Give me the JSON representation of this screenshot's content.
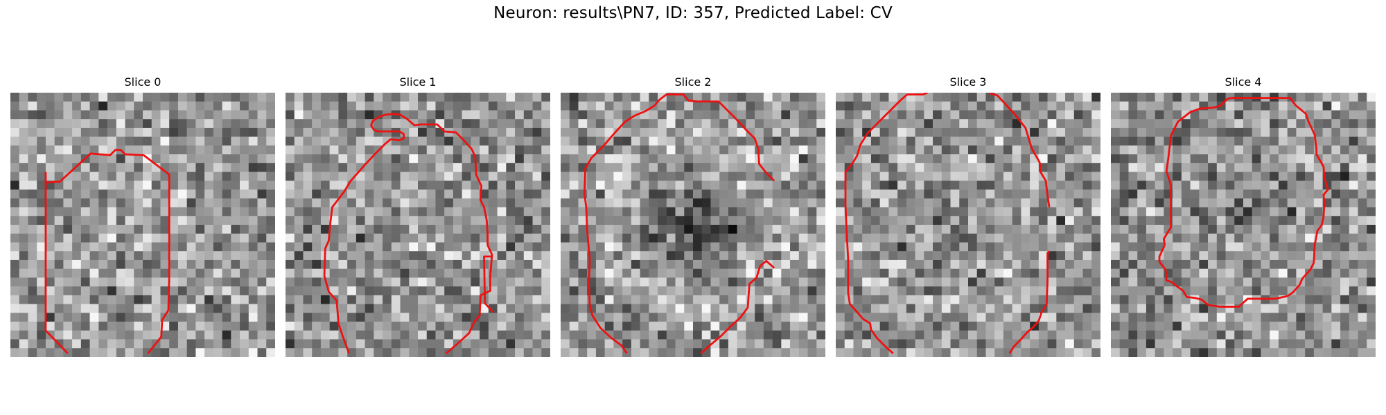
{
  "figure": {
    "title": "Neuron: results\\PN7, ID: 357, Predicted Label: CV"
  },
  "style": {
    "contour_color": "#ee1111",
    "background": "#ffffff"
  },
  "slices": [
    {
      "title": "Slice 0",
      "seed": 11,
      "feature": "faint bright disk",
      "contour": [
        [
          4,
          26
        ],
        [
          4,
          9
        ],
        [
          8,
          7
        ],
        [
          11,
          6.8
        ],
        [
          13,
          6.4
        ],
        [
          14.1,
          6.4
        ],
        [
          14.8,
          6.8
        ],
        [
          16.9,
          7
        ],
        [
          19.7,
          9
        ],
        [
          19.9,
          16
        ],
        [
          19.9,
          21
        ],
        [
          19.6,
          24
        ],
        [
          17,
          25.2
        ],
        [
          15,
          28
        ],
        [
          15.4,
          29.5
        ],
        [
          7.6,
          29.6
        ],
        [
          7.5,
          28
        ],
        [
          6.5,
          27
        ],
        [
          4,
          26
        ]
      ],
      "contour_open": [
        [
          [
            4,
            9
          ],
          [
            4,
            27
          ],
          [
            6.5,
            29.6
          ]
        ],
        [
          [
            15.6,
            29.6
          ],
          [
            17.1,
            27.7
          ],
          [
            17.2,
            25.8
          ],
          [
            17.9,
            24.7
          ],
          [
            18,
            21
          ],
          [
            18,
            9.3
          ],
          [
            15.1,
            7.1
          ],
          [
            13,
            7
          ],
          [
            12.5,
            6.5
          ],
          [
            11.9,
            6.5
          ],
          [
            11.3,
            7.1
          ],
          [
            9.1,
            6.9
          ],
          [
            5.6,
            10.1
          ],
          [
            4,
            10.2
          ]
        ]
      ]
    },
    {
      "title": "Slice 1",
      "seed": 23,
      "feature": "mixed",
      "contour_open": [
        [
          [
            7.2,
            29.6
          ],
          [
            6.5,
            27.7
          ],
          [
            6,
            26.2
          ],
          [
            5.8,
            23.6
          ],
          [
            4.9,
            22.6
          ],
          [
            4.4,
            20.8
          ],
          [
            4.5,
            17.7
          ],
          [
            4.9,
            16.8
          ],
          [
            5.1,
            14.6
          ],
          [
            5.3,
            13
          ],
          [
            6.6,
            11.3
          ],
          [
            7.4,
            10
          ],
          [
            8.9,
            8.3
          ],
          [
            10.2,
            6.9
          ],
          [
            11.3,
            5.8
          ],
          [
            11.9,
            5.3
          ],
          [
            12.9,
            5.4
          ],
          [
            13.4,
            5.2
          ],
          [
            13.4,
            4.7
          ],
          [
            12.9,
            4.4
          ],
          [
            10.4,
            4.4
          ],
          [
            10,
            4.2
          ],
          [
            9.7,
            3.7
          ],
          [
            9.9,
            3.2
          ],
          [
            10.5,
            2.8
          ],
          [
            11.3,
            2.5
          ],
          [
            12.2,
            2.4
          ],
          [
            13,
            2.5
          ],
          [
            13.8,
            3
          ],
          [
            14.6,
            3.7
          ],
          [
            15.3,
            3.6
          ],
          [
            16.3,
            3.6
          ],
          [
            17.2,
            3.6
          ],
          [
            18,
            4.4
          ],
          [
            19.3,
            4.5
          ],
          [
            20.1,
            5.3
          ],
          [
            21.1,
            6.4
          ],
          [
            21.5,
            7.3
          ],
          [
            21.6,
            9.3
          ],
          [
            22.2,
            10.6
          ],
          [
            22.1,
            12.2
          ],
          [
            22.5,
            13
          ],
          [
            22.8,
            14.5
          ],
          [
            22.9,
            16
          ],
          [
            22.9,
            17.3
          ],
          [
            23.4,
            18.4
          ],
          [
            23.2,
            20.8
          ],
          [
            23.2,
            22.5
          ],
          [
            22.1,
            23
          ],
          [
            22,
            25.3
          ],
          [
            21.4,
            26
          ],
          [
            20.8,
            27.3
          ],
          [
            19.5,
            28.5
          ],
          [
            18.2,
            29.6
          ]
        ],
        [
          [
            23.5,
            18.6
          ],
          [
            22.5,
            18.6
          ],
          [
            22.6,
            23.9
          ],
          [
            23.5,
            24.9
          ]
        ]
      ]
    },
    {
      "title": "Slice 2",
      "seed": 37,
      "feature": "dark center",
      "contour_open": [
        [
          [
            7.5,
            29.6
          ],
          [
            6.9,
            28.7
          ],
          [
            5.8,
            27.9
          ],
          [
            4.5,
            26.7
          ],
          [
            3.6,
            25.3
          ],
          [
            3.3,
            24.1
          ],
          [
            3.2,
            21.7
          ],
          [
            3.3,
            19
          ],
          [
            3.1,
            16.7
          ],
          [
            3,
            15.4
          ],
          [
            2.9,
            13
          ],
          [
            2.7,
            11.5
          ],
          [
            2.8,
            8.6
          ],
          [
            3.5,
            7.4
          ],
          [
            4.8,
            6.1
          ],
          [
            6.1,
            4.6
          ],
          [
            7.3,
            3.3
          ],
          [
            8.4,
            2.6
          ],
          [
            9.6,
            2.1
          ],
          [
            10.6,
            1.5
          ],
          [
            11.2,
            0.8
          ],
          [
            12,
            0.2
          ],
          [
            13.9,
            0.2
          ],
          [
            14.5,
            0.9
          ],
          [
            15.5,
            1
          ],
          [
            16.8,
            1
          ],
          [
            17.9,
            1
          ],
          [
            18.7,
            1.8
          ],
          [
            19.8,
            2.9
          ],
          [
            20.9,
            4.1
          ],
          [
            22,
            5.2
          ],
          [
            22.4,
            6.4
          ],
          [
            22.5,
            8.1
          ],
          [
            23.3,
            9.1
          ],
          [
            24.2,
            10
          ]
        ],
        [
          [
            24.2,
            19.9
          ],
          [
            23.3,
            19.1
          ],
          [
            22.6,
            19.7
          ],
          [
            22.2,
            21
          ],
          [
            21.4,
            21.7
          ],
          [
            21.2,
            24.4
          ],
          [
            20.4,
            25.5
          ],
          [
            19.2,
            26.6
          ],
          [
            18.1,
            27.7
          ],
          [
            16.9,
            28.7
          ],
          [
            15.9,
            29.6
          ]
        ]
      ]
    },
    {
      "title": "Slice 3",
      "seed": 51,
      "feature": "mixed",
      "contour_open": [
        [
          [
            6.5,
            29.6
          ],
          [
            5.6,
            28.8
          ],
          [
            4.7,
            27.9
          ],
          [
            4,
            26.9
          ],
          [
            3.9,
            26.2
          ],
          [
            3.1,
            25.7
          ],
          [
            2.5,
            25
          ],
          [
            1.6,
            24
          ],
          [
            1.4,
            22.7
          ],
          [
            1.4,
            21.2
          ],
          [
            1.4,
            18.9
          ],
          [
            1.2,
            15.1
          ],
          [
            1.1,
            12.7
          ],
          [
            1.1,
            10.4
          ],
          [
            1.1,
            9
          ],
          [
            1.9,
            8
          ],
          [
            2.4,
            7.2
          ],
          [
            2.8,
            5.9
          ],
          [
            3.6,
            4.6
          ],
          [
            4.7,
            3.5
          ],
          [
            6,
            2.2
          ],
          [
            7.3,
            0.9
          ],
          [
            8.1,
            0.2
          ],
          [
            9.9,
            0.2
          ],
          [
            10.4,
            0
          ]
        ],
        [
          [
            17.5,
            0.1
          ],
          [
            18.3,
            0.3
          ],
          [
            19.5,
            1.6
          ],
          [
            20.4,
            2.6
          ],
          [
            21.5,
            4
          ],
          [
            21.9,
            5.3
          ],
          [
            22.2,
            6.3
          ],
          [
            22.7,
            7.2
          ],
          [
            23.1,
            7.9
          ],
          [
            23.2,
            9
          ],
          [
            23.8,
            10
          ],
          [
            24,
            11.7
          ],
          [
            24.2,
            13
          ]
        ],
        [
          [
            24.2,
            18
          ],
          [
            24,
            18.2
          ],
          [
            24,
            21.3
          ],
          [
            23.9,
            24
          ],
          [
            23.3,
            25
          ],
          [
            23,
            25.9
          ],
          [
            22.4,
            26.6
          ],
          [
            21.7,
            27.2
          ],
          [
            20.9,
            28.1
          ],
          [
            20.2,
            28.8
          ],
          [
            19.7,
            29.6
          ]
        ]
      ]
    },
    {
      "title": "Slice 4",
      "seed": 67,
      "feature": "speckled",
      "contour_open": [
        [
          [
            6.1,
            17.3
          ],
          [
            6,
            16.6
          ],
          [
            6.6,
            15.6
          ],
          [
            6.8,
            15.3
          ],
          [
            6.8,
            10.5
          ],
          [
            6.3,
            8.9
          ],
          [
            6.5,
            7.5
          ],
          [
            6.8,
            4.9
          ],
          [
            7.6,
            3.3
          ],
          [
            9,
            2.2
          ],
          [
            10.1,
            1.8
          ],
          [
            11.6,
            1.7
          ],
          [
            12.4,
            1.5
          ],
          [
            13.2,
            0.7
          ],
          [
            13.7,
            0.6
          ],
          [
            15,
            0.6
          ],
          [
            16.2,
            0.6
          ],
          [
            17.8,
            0.6
          ],
          [
            18.9,
            0.6
          ],
          [
            20.3,
            0.6
          ],
          [
            20.9,
            1.4
          ],
          [
            22.1,
            2.4
          ],
          [
            22.4,
            3.3
          ],
          [
            22.7,
            3.9
          ],
          [
            23.1,
            4.8
          ],
          [
            23.3,
            6.4
          ],
          [
            23.3,
            7
          ],
          [
            24.1,
            8.4
          ],
          [
            24.2,
            9.7
          ],
          [
            24.6,
            11
          ],
          [
            24.1,
            11.6
          ],
          [
            24.2,
            12.5
          ]
        ],
        [
          [
            24.2,
            12.3
          ],
          [
            24.1,
            14.1
          ],
          [
            23.9,
            15
          ],
          [
            23.4,
            15.7
          ],
          [
            23.1,
            17.3
          ],
          [
            23,
            19.3
          ],
          [
            22.6,
            20.1
          ],
          [
            21.7,
            21.1
          ],
          [
            21.4,
            21.8
          ],
          [
            20.6,
            22.7
          ],
          [
            20,
            23.1
          ],
          [
            18.6,
            23.4
          ],
          [
            17.5,
            23.4
          ],
          [
            16.6,
            23.4
          ],
          [
            15.5,
            23.4
          ],
          [
            14.5,
            24.3
          ],
          [
            12.3,
            24.3
          ],
          [
            11,
            24.1
          ],
          [
            10.3,
            23.5
          ],
          [
            9.5,
            23.3
          ],
          [
            8.6,
            23.2
          ],
          [
            8.2,
            22.5
          ],
          [
            7.5,
            22
          ],
          [
            6.9,
            21.5
          ],
          [
            6.3,
            21.3
          ],
          [
            6.2,
            20.1
          ],
          [
            5.5,
            19.2
          ],
          [
            5.5,
            18.6
          ],
          [
            6.1,
            17.3
          ]
        ]
      ]
    }
  ]
}
